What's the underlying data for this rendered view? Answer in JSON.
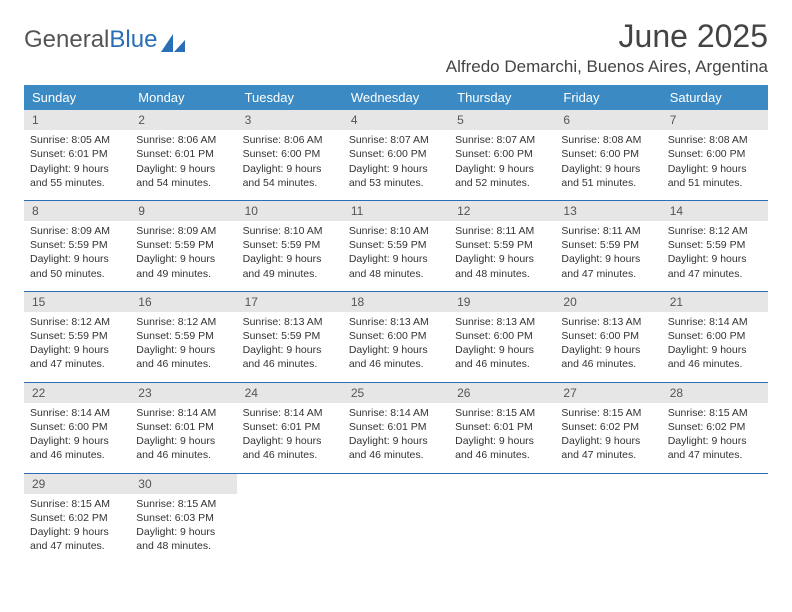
{
  "brand": {
    "part1": "General",
    "part2": "Blue"
  },
  "title": "June 2025",
  "location": "Alfredo Demarchi, Buenos Aires, Argentina",
  "colors": {
    "header_bg": "#3b8ac4",
    "rule": "#2a6fb5",
    "daynum_bg": "#e6e6e6",
    "text": "#333333",
    "background": "#ffffff"
  },
  "typography": {
    "title_fontsize": 32,
    "location_fontsize": 17,
    "dayhead_fontsize": 13,
    "cell_fontsize": 10.5
  },
  "layout": {
    "columns": 7,
    "rows": 5
  },
  "day_headers": [
    "Sunday",
    "Monday",
    "Tuesday",
    "Wednesday",
    "Thursday",
    "Friday",
    "Saturday"
  ],
  "weeks": [
    [
      {
        "n": "1",
        "sunrise": "Sunrise: 8:05 AM",
        "sunset": "Sunset: 6:01 PM",
        "daylight": "Daylight: 9 hours and 55 minutes."
      },
      {
        "n": "2",
        "sunrise": "Sunrise: 8:06 AM",
        "sunset": "Sunset: 6:01 PM",
        "daylight": "Daylight: 9 hours and 54 minutes."
      },
      {
        "n": "3",
        "sunrise": "Sunrise: 8:06 AM",
        "sunset": "Sunset: 6:00 PM",
        "daylight": "Daylight: 9 hours and 54 minutes."
      },
      {
        "n": "4",
        "sunrise": "Sunrise: 8:07 AM",
        "sunset": "Sunset: 6:00 PM",
        "daylight": "Daylight: 9 hours and 53 minutes."
      },
      {
        "n": "5",
        "sunrise": "Sunrise: 8:07 AM",
        "sunset": "Sunset: 6:00 PM",
        "daylight": "Daylight: 9 hours and 52 minutes."
      },
      {
        "n": "6",
        "sunrise": "Sunrise: 8:08 AM",
        "sunset": "Sunset: 6:00 PM",
        "daylight": "Daylight: 9 hours and 51 minutes."
      },
      {
        "n": "7",
        "sunrise": "Sunrise: 8:08 AM",
        "sunset": "Sunset: 6:00 PM",
        "daylight": "Daylight: 9 hours and 51 minutes."
      }
    ],
    [
      {
        "n": "8",
        "sunrise": "Sunrise: 8:09 AM",
        "sunset": "Sunset: 5:59 PM",
        "daylight": "Daylight: 9 hours and 50 minutes."
      },
      {
        "n": "9",
        "sunrise": "Sunrise: 8:09 AM",
        "sunset": "Sunset: 5:59 PM",
        "daylight": "Daylight: 9 hours and 49 minutes."
      },
      {
        "n": "10",
        "sunrise": "Sunrise: 8:10 AM",
        "sunset": "Sunset: 5:59 PM",
        "daylight": "Daylight: 9 hours and 49 minutes."
      },
      {
        "n": "11",
        "sunrise": "Sunrise: 8:10 AM",
        "sunset": "Sunset: 5:59 PM",
        "daylight": "Daylight: 9 hours and 48 minutes."
      },
      {
        "n": "12",
        "sunrise": "Sunrise: 8:11 AM",
        "sunset": "Sunset: 5:59 PM",
        "daylight": "Daylight: 9 hours and 48 minutes."
      },
      {
        "n": "13",
        "sunrise": "Sunrise: 8:11 AM",
        "sunset": "Sunset: 5:59 PM",
        "daylight": "Daylight: 9 hours and 47 minutes."
      },
      {
        "n": "14",
        "sunrise": "Sunrise: 8:12 AM",
        "sunset": "Sunset: 5:59 PM",
        "daylight": "Daylight: 9 hours and 47 minutes."
      }
    ],
    [
      {
        "n": "15",
        "sunrise": "Sunrise: 8:12 AM",
        "sunset": "Sunset: 5:59 PM",
        "daylight": "Daylight: 9 hours and 47 minutes."
      },
      {
        "n": "16",
        "sunrise": "Sunrise: 8:12 AM",
        "sunset": "Sunset: 5:59 PM",
        "daylight": "Daylight: 9 hours and 46 minutes."
      },
      {
        "n": "17",
        "sunrise": "Sunrise: 8:13 AM",
        "sunset": "Sunset: 5:59 PM",
        "daylight": "Daylight: 9 hours and 46 minutes."
      },
      {
        "n": "18",
        "sunrise": "Sunrise: 8:13 AM",
        "sunset": "Sunset: 6:00 PM",
        "daylight": "Daylight: 9 hours and 46 minutes."
      },
      {
        "n": "19",
        "sunrise": "Sunrise: 8:13 AM",
        "sunset": "Sunset: 6:00 PM",
        "daylight": "Daylight: 9 hours and 46 minutes."
      },
      {
        "n": "20",
        "sunrise": "Sunrise: 8:13 AM",
        "sunset": "Sunset: 6:00 PM",
        "daylight": "Daylight: 9 hours and 46 minutes."
      },
      {
        "n": "21",
        "sunrise": "Sunrise: 8:14 AM",
        "sunset": "Sunset: 6:00 PM",
        "daylight": "Daylight: 9 hours and 46 minutes."
      }
    ],
    [
      {
        "n": "22",
        "sunrise": "Sunrise: 8:14 AM",
        "sunset": "Sunset: 6:00 PM",
        "daylight": "Daylight: 9 hours and 46 minutes."
      },
      {
        "n": "23",
        "sunrise": "Sunrise: 8:14 AM",
        "sunset": "Sunset: 6:01 PM",
        "daylight": "Daylight: 9 hours and 46 minutes."
      },
      {
        "n": "24",
        "sunrise": "Sunrise: 8:14 AM",
        "sunset": "Sunset: 6:01 PM",
        "daylight": "Daylight: 9 hours and 46 minutes."
      },
      {
        "n": "25",
        "sunrise": "Sunrise: 8:14 AM",
        "sunset": "Sunset: 6:01 PM",
        "daylight": "Daylight: 9 hours and 46 minutes."
      },
      {
        "n": "26",
        "sunrise": "Sunrise: 8:15 AM",
        "sunset": "Sunset: 6:01 PM",
        "daylight": "Daylight: 9 hours and 46 minutes."
      },
      {
        "n": "27",
        "sunrise": "Sunrise: 8:15 AM",
        "sunset": "Sunset: 6:02 PM",
        "daylight": "Daylight: 9 hours and 47 minutes."
      },
      {
        "n": "28",
        "sunrise": "Sunrise: 8:15 AM",
        "sunset": "Sunset: 6:02 PM",
        "daylight": "Daylight: 9 hours and 47 minutes."
      }
    ],
    [
      {
        "n": "29",
        "sunrise": "Sunrise: 8:15 AM",
        "sunset": "Sunset: 6:02 PM",
        "daylight": "Daylight: 9 hours and 47 minutes."
      },
      {
        "n": "30",
        "sunrise": "Sunrise: 8:15 AM",
        "sunset": "Sunset: 6:03 PM",
        "daylight": "Daylight: 9 hours and 48 minutes."
      },
      null,
      null,
      null,
      null,
      null
    ]
  ]
}
